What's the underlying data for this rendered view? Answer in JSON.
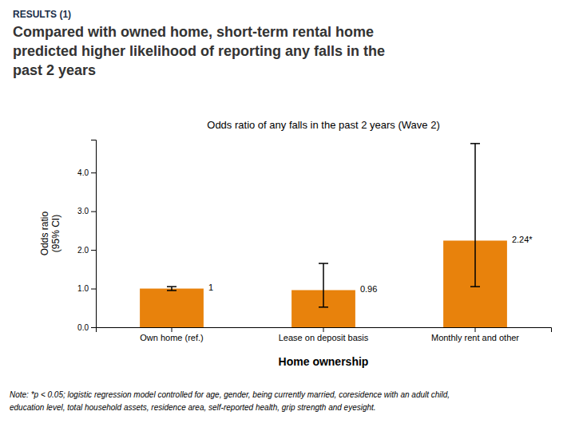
{
  "chart_data": {
    "type": "bar",
    "suptitle": "RESULTS (1)",
    "subtitle": [
      "Compared with owned home, short-term rental home",
      "predicted higher likelihood of reporting any falls in the",
      "past 2 years"
    ],
    "title": "Odds ratio of any falls in the past 2 years (Wave 2)",
    "ylabel": [
      "Odds ratio",
      "(95% CI)"
    ],
    "xlabel": "Home ownership",
    "categories": [
      "Own home (ref.)",
      "Lease on deposit basis",
      "Monthly rent and other"
    ],
    "values": [
      1.0,
      0.96,
      2.24
    ],
    "ci_lower": [
      0.95,
      0.52,
      1.05
    ],
    "ci_upper": [
      1.05,
      1.65,
      4.75
    ],
    "value_labels": [
      "1",
      "0.96",
      "2.24*"
    ],
    "data_labels": true,
    "color": "#E8820C",
    "ylim": [
      0,
      4.85
    ],
    "yticks": [
      {
        "value": 0,
        "label": "0.0"
      },
      {
        "value": 1,
        "label": "1.0"
      },
      {
        "value": 2,
        "label": "2.0"
      },
      {
        "value": 3,
        "label": "3.0"
      },
      {
        "value": 4,
        "label": "4.0"
      }
    ],
    "grid": false,
    "note": [
      "Note: *p < 0.05; logistic regression model controlled for  age, gender,  being currently married, coresidence with an adult child,",
      "education level,  total household assets, residence area, self-reported health, grip strength and eyesight."
    ]
  }
}
